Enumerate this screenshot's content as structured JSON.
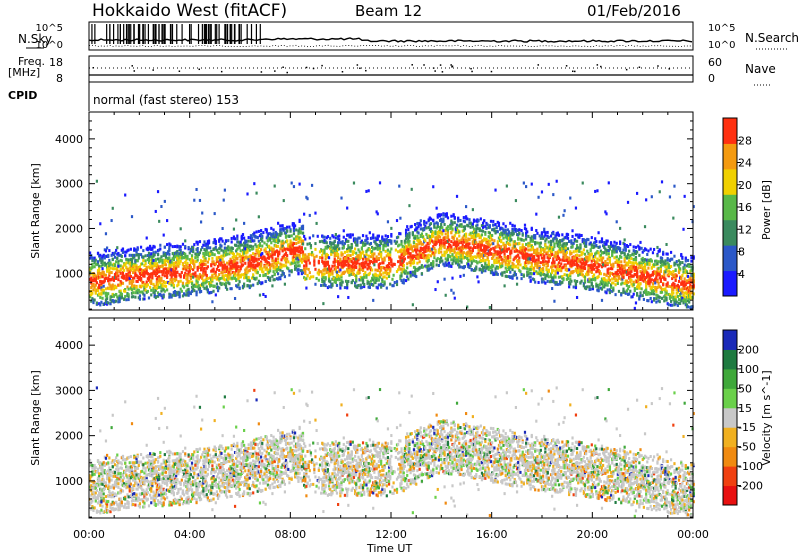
{
  "header": {
    "radar": "Hokkaido West (fitACF)",
    "beam": "Beam 12",
    "date": "01/Feb/2016"
  },
  "labels": {
    "nsky": "N.Sky",
    "freq_line1": "Freq.",
    "freq_line2": "[MHz]",
    "cpid": "CPID",
    "nsearch": "N.Search",
    "nave": "Nave",
    "cpid_text": "normal (fast stereo) 153"
  },
  "noise_axis": {
    "left_top": "10^5",
    "left_bottom": "10^0",
    "right_top": "10^5",
    "right_bottom": "10^0"
  },
  "freq_axis": {
    "left_top": "18",
    "left_bottom": "8",
    "right_top": "60",
    "right_bottom": "0"
  },
  "chart_data": [
    {
      "type": "heatmap",
      "title": "Power",
      "ylabel": "Slant Range [km]",
      "ylim": [
        180,
        4600
      ],
      "yticks": [
        "1000",
        "2000",
        "3000",
        "4000"
      ],
      "xticks": [
        "00:00",
        "04:00",
        "08:00",
        "12:00",
        "16:00",
        "20:00",
        "00:00"
      ],
      "colorbar_label": "Power [dB]",
      "colorbar_ticks": [
        "4",
        "8",
        "12",
        "16",
        "20",
        "24",
        "28"
      ],
      "colorbar_colors": [
        "#1a1aff",
        "#2b58c8",
        "#3a8a5e",
        "#58b848",
        "#f0d000",
        "#f49a10",
        "#ff3010"
      ]
    },
    {
      "type": "heatmap",
      "title": "Velocity",
      "ylabel": "Slant Range [km]",
      "ylim": [
        180,
        4600
      ],
      "yticks": [
        "1000",
        "2000",
        "3000",
        "4000"
      ],
      "xticks": [
        "00:00",
        "04:00",
        "08:00",
        "12:00",
        "16:00",
        "20:00",
        "00:00"
      ],
      "xlabel": "Time UT",
      "colorbar_label": "Velocity [m s^-1]",
      "colorbar_ticks": [
        "200",
        "100",
        "50",
        "15",
        "-15",
        "-50",
        "-100",
        "-200"
      ],
      "colorbar_colors": [
        "#1a2ab8",
        "#1e7a40",
        "#3fa83a",
        "#6ad04a",
        "#c8c8c8",
        "#f0b020",
        "#f08a10",
        "#f04010",
        "#e81010"
      ]
    }
  ]
}
